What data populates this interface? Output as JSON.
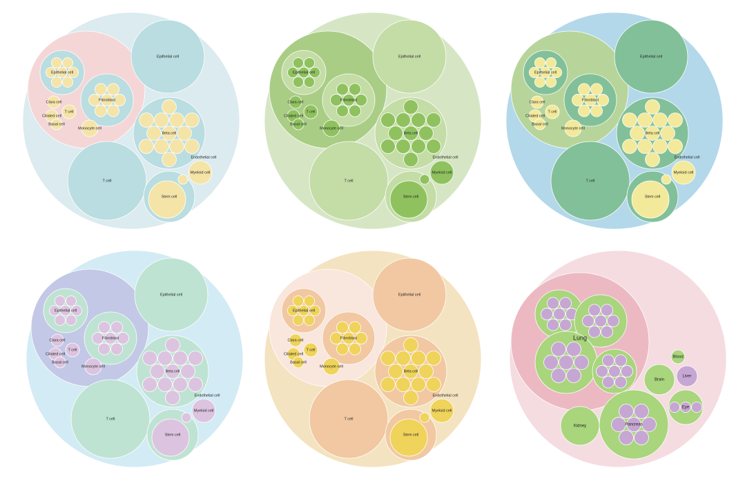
{
  "panels": [
    {
      "labels": [
        "Epithelial cell",
        "T cell",
        "Beta cell",
        "Stem cell",
        "Myeloid cell",
        "Endothelial cell",
        "Epithelial cell",
        "Fibroblast",
        "Clara cell",
        "T cell",
        "Ciliated cell",
        "Basal cell",
        "Monocyte cell"
      ]
    },
    {
      "labels": [
        "Epithelial cell",
        "T cell",
        "Beta cell",
        "Stem cell",
        "Myeloid cell",
        "Endothelial cell",
        "Epithelial cell",
        "Fibroblast",
        "Clara cell",
        "T cell",
        "Ciliated cell",
        "Basal cell",
        "Monocyte cell"
      ]
    },
    {
      "labels": [
        "Epithelial cell",
        "T cell",
        "Beta cell",
        "Stem cell",
        "Myeloid cell",
        "Endothelial cell",
        "Epithelial cell",
        "Fibroblast",
        "Clara cell",
        "T cell",
        "Ciliated cell",
        "Basal cell",
        "Monocyte cell"
      ]
    },
    {
      "labels": [
        "Epithelial cell",
        "T cell",
        "Beta cell",
        "Stem cell",
        "Myeloid cell",
        "Endothelial cell",
        "Epithelial cell",
        "Fibroblast",
        "Clara cell",
        "T cell",
        "Ciliated cell",
        "Basal cell",
        "Monocyte cell"
      ]
    },
    {
      "labels": [
        "Epithelial cell",
        "T cell",
        "Beta cell",
        "Stem cell",
        "Myeloid cell",
        "Endothelial cell",
        "Epithelial cell",
        "Fibroblast",
        "Clara cell",
        "T cell",
        "Ciliated cell",
        "Basal cell",
        "Monocyte cell"
      ]
    },
    {
      "labels": [
        "Lung",
        "Brain",
        "Liver",
        "Eye",
        "Kidney",
        "Pancreas",
        "Blood"
      ]
    }
  ]
}
